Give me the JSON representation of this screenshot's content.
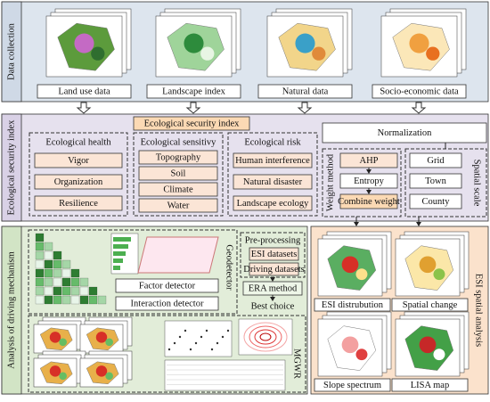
{
  "data_collection": {
    "title": "Data collection",
    "items": [
      "Land use data",
      "Landscape index",
      "Natural data",
      "Socio-economic data"
    ]
  },
  "ecological_security_index": {
    "title": "Ecological security index",
    "header": "Ecological security index",
    "groups": [
      {
        "title": "Ecological health",
        "items": [
          "Vigor",
          "Organization",
          "Resilience"
        ]
      },
      {
        "title": "Ecological sensitivy",
        "items": [
          "Topography",
          "Soil",
          "Climate",
          "Water"
        ]
      },
      {
        "title": "Ecological risk",
        "items": [
          "Human interference",
          "Natural disaster",
          "Landscape ecology"
        ]
      }
    ],
    "normalization": "Normalization",
    "weight_method": {
      "title": "Weight method",
      "items": [
        "AHP",
        "Entropy",
        "Combine weight"
      ]
    },
    "spatial_scale": {
      "title": "Spatial scale",
      "items": [
        "Grid",
        "Town",
        "County"
      ]
    }
  },
  "driving_mechanism": {
    "title": "Analysis of driving mechanism",
    "geodetector": "Geodetector",
    "factor_detector": "Factor detector",
    "interaction_detector": "Interaction detector",
    "preprocessing": "Pre-processing",
    "datasets": [
      "ESI datasets",
      "Driving datasets"
    ],
    "era_method": "ERA method",
    "best_choice": "Best choice",
    "mgwr": "MGWR"
  },
  "spatial_analysis": {
    "title": "ESI spatial analysis",
    "items": [
      "ESI distrubution",
      "Spatial change",
      "Slope spectrum",
      "LISA map"
    ]
  }
}
